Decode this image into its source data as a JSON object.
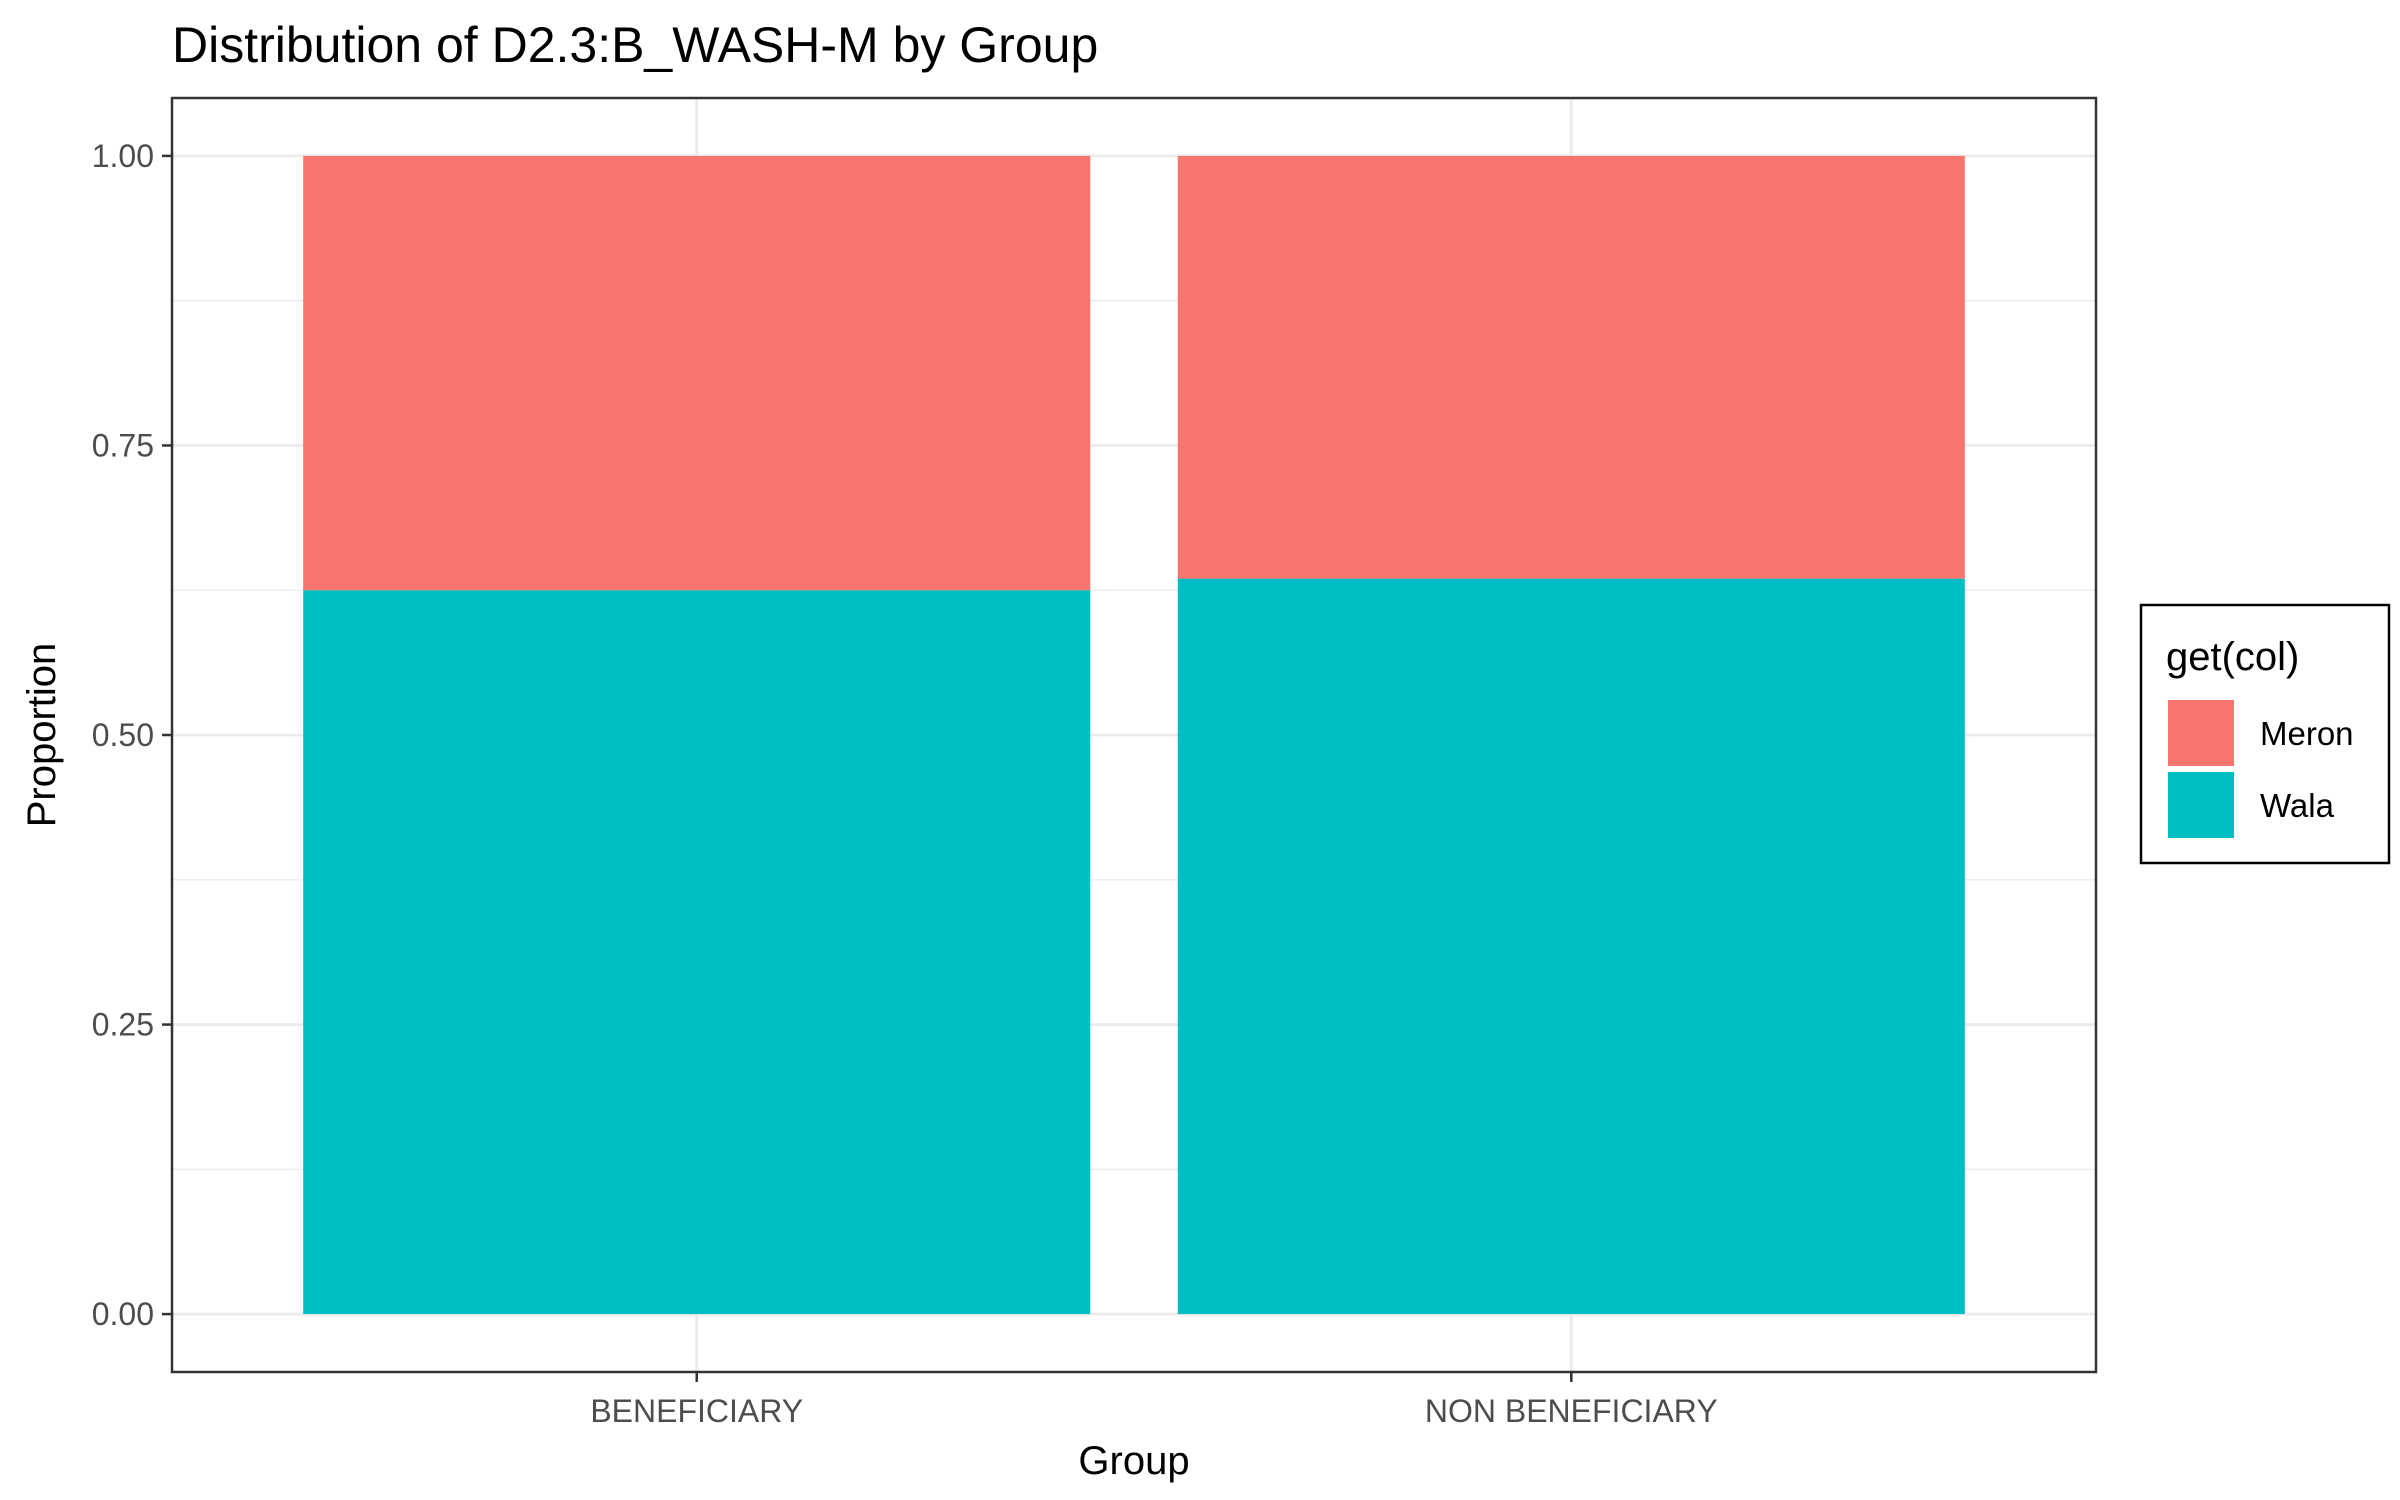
{
  "chart_data": {
    "type": "bar",
    "stacked": true,
    "title": "Distribution of D2.3:B_WASH-M by Group",
    "xlabel": "Group",
    "ylabel": "Proportion",
    "categories": [
      "BENEFICIARY",
      "NON BENEFICIARY"
    ],
    "series": [
      {
        "name": "Wala",
        "color": "#00BFC4",
        "values": [
          0.625,
          0.635
        ]
      },
      {
        "name": "Meron",
        "color": "#F8766D",
        "values": [
          0.375,
          0.365
        ]
      }
    ],
    "ylim": [
      -0.05,
      1.05
    ],
    "yticks": [
      0,
      0.25,
      0.5,
      0.75,
      1.0
    ],
    "ytick_labels": [
      "0.00",
      "0.25",
      "0.50",
      "0.75",
      "1.00"
    ],
    "grid": true,
    "legend": {
      "title": "get(col)",
      "placement": "right",
      "items": [
        {
          "name": "Meron",
          "color": "#F8766D"
        },
        {
          "name": "Wala",
          "color": "#00BFC4"
        }
      ]
    }
  }
}
